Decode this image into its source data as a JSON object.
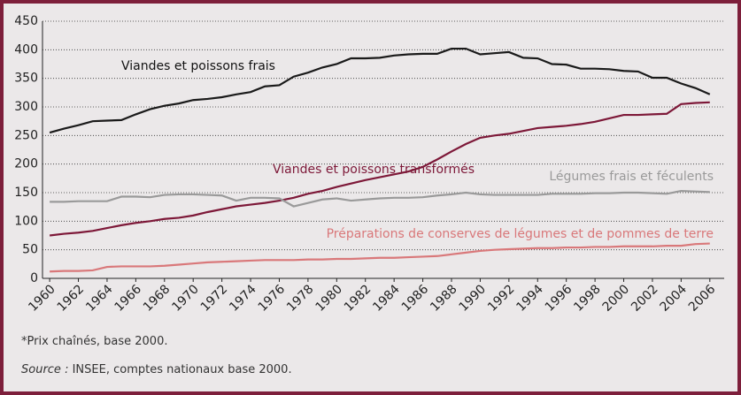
{
  "chart_data": {
    "type": "line",
    "x": [
      1960,
      1961,
      1962,
      1963,
      1964,
      1965,
      1966,
      1967,
      1968,
      1969,
      1970,
      1971,
      1972,
      1973,
      1974,
      1975,
      1976,
      1977,
      1978,
      1979,
      1980,
      1981,
      1982,
      1983,
      1984,
      1985,
      1986,
      1987,
      1988,
      1989,
      1990,
      1991,
      1992,
      1993,
      1994,
      1995,
      1996,
      1997,
      1998,
      1999,
      2000,
      2001,
      2002,
      2003,
      2004,
      2005,
      2006
    ],
    "series": [
      {
        "name": "Viandes et poissons frais",
        "color": "#1a1a1a",
        "values": [
          255,
          262,
          268,
          275,
          276,
          277,
          287,
          296,
          302,
          306,
          312,
          314,
          317,
          322,
          326,
          336,
          338,
          353,
          360,
          369,
          375,
          385,
          385,
          386,
          390,
          392,
          393,
          393,
          402,
          402,
          392,
          394,
          396,
          386,
          385,
          375,
          374,
          367,
          367,
          366,
          363,
          362,
          351,
          351,
          341,
          333,
          322
        ]
      },
      {
        "name": "Viandes et poissons transformés",
        "color": "#7d1838",
        "values": [
          75,
          78,
          80,
          83,
          88,
          93,
          97,
          100,
          104,
          106,
          110,
          116,
          121,
          126,
          129,
          132,
          136,
          141,
          148,
          153,
          160,
          166,
          172,
          177,
          182,
          187,
          195,
          208,
          222,
          235,
          246,
          250,
          253,
          258,
          263,
          265,
          267,
          270,
          274,
          280,
          286,
          286,
          287,
          288,
          305,
          307,
          308
        ]
      },
      {
        "name": "Légumes frais et féculents",
        "color": "#9a9a9a",
        "values": [
          134,
          134,
          135,
          135,
          135,
          143,
          143,
          142,
          146,
          147,
          147,
          146,
          145,
          136,
          141,
          141,
          140,
          126,
          132,
          138,
          140,
          136,
          138,
          140,
          141,
          141,
          142,
          145,
          147,
          150,
          147,
          146,
          146,
          146,
          146,
          148,
          148,
          148,
          149,
          149,
          150,
          150,
          149,
          148,
          153,
          152,
          151
        ]
      },
      {
        "name": "Préparations de conserves de légumes et de pommes de terre",
        "color": "#d9787a",
        "values": [
          12,
          13,
          13,
          14,
          20,
          21,
          21,
          21,
          22,
          24,
          26,
          28,
          29,
          30,
          31,
          32,
          32,
          32,
          33,
          33,
          34,
          34,
          35,
          36,
          36,
          37,
          38,
          39,
          42,
          45,
          48,
          50,
          51,
          52,
          53,
          53,
          54,
          54,
          55,
          55,
          56,
          56,
          56,
          57,
          57,
          60,
          61
        ]
      }
    ],
    "xlim": [
      1959.5,
      2007
    ],
    "xticks": [
      1960,
      1962,
      1964,
      1966,
      1968,
      1970,
      1972,
      1974,
      1976,
      1978,
      1980,
      1982,
      1984,
      1986,
      1988,
      1990,
      1992,
      1994,
      1996,
      1998,
      2000,
      2002,
      2004,
      2006
    ],
    "ylim": [
      0,
      450
    ],
    "yticks": [
      0,
      50,
      100,
      150,
      200,
      250,
      300,
      350,
      400,
      450
    ],
    "grid": true,
    "footnote": "*Prix chaînés, base 2000.",
    "source_label": "Source :",
    "source": "INSEE, comptes nationaux base 2000."
  }
}
